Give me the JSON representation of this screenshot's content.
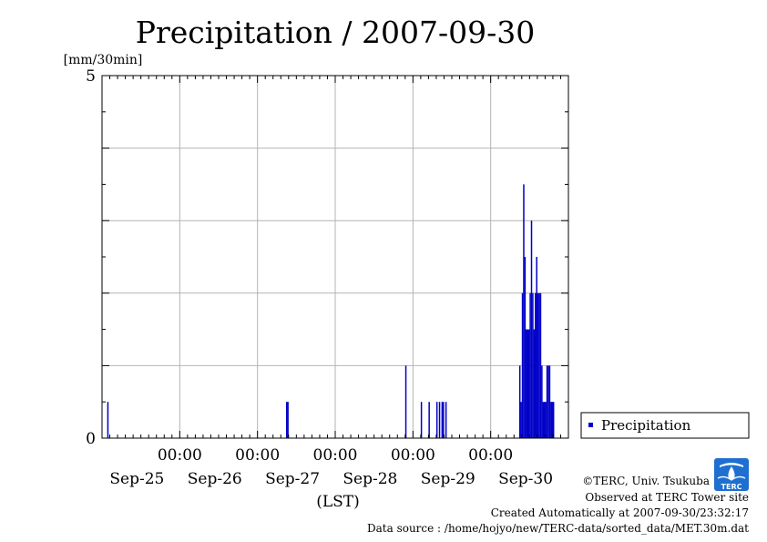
{
  "chart_data": {
    "type": "bar",
    "title": "Precipitation / 2007-09-30",
    "ylabel": "[mm/30min]",
    "xlabel": "(LST)",
    "ylim": [
      0,
      5
    ],
    "yticks": [
      {
        "value": 0,
        "label": "0"
      },
      {
        "value": 5,
        "label": "5"
      }
    ],
    "xlim": [
      -12,
      168
    ],
    "xticks": [
      {
        "hour": 18,
        "time": "00:00",
        "date": "Sep-25"
      },
      {
        "hour": 48,
        "time": "00:00",
        "date": "Sep-26"
      },
      {
        "hour": 78,
        "time": "00:00",
        "date": "Sep-27"
      },
      {
        "hour": 108,
        "time": "00:00",
        "date": "Sep-28"
      },
      {
        "hour": 138,
        "time": "00:00",
        "date": "Sep-29"
      },
      {
        "hour": null,
        "time": "",
        "date": "Sep-30"
      }
    ],
    "grid": true,
    "legend": {
      "position": "right",
      "entries": [
        "Precipitation"
      ]
    },
    "series": [
      {
        "name": "Precipitation",
        "color": "#0000c8",
        "points": [
          [
            -10,
            0.5
          ],
          [
            59,
            0.5
          ],
          [
            59.5,
            0.5
          ],
          [
            105,
            1.0
          ],
          [
            111,
            0.5
          ],
          [
            114,
            0.5
          ],
          [
            117,
            0.5
          ],
          [
            118,
            0.5
          ],
          [
            119,
            0.5
          ],
          [
            119.5,
            0.5
          ],
          [
            120.5,
            0.5
          ],
          [
            149,
            1.0
          ],
          [
            149.5,
            0.5
          ],
          [
            150,
            2.0
          ],
          [
            150.5,
            3.5
          ],
          [
            151,
            2.5
          ],
          [
            151.5,
            1.5
          ],
          [
            152,
            1.5
          ],
          [
            152.5,
            1.5
          ],
          [
            153,
            2.0
          ],
          [
            153.5,
            3.0
          ],
          [
            154,
            2.0
          ],
          [
            154.5,
            1.5
          ],
          [
            155,
            2.0
          ],
          [
            155.5,
            2.5
          ],
          [
            156,
            2.0
          ],
          [
            156.5,
            2.0
          ],
          [
            157,
            2.0
          ],
          [
            157.5,
            1.0
          ],
          [
            158,
            0.5
          ],
          [
            158.5,
            0.5
          ],
          [
            159,
            0.5
          ],
          [
            159.5,
            1.0
          ],
          [
            160,
            1.0
          ],
          [
            160.5,
            1.0
          ],
          [
            161,
            0.5
          ],
          [
            161.5,
            0.5
          ],
          [
            162,
            0.5
          ]
        ]
      }
    ]
  },
  "footer": {
    "copyright": "©TERC, Univ. Tsukuba",
    "observed": "Observed at TERC Tower site",
    "created": "Created Automatically at 2007-09-30/23:32:17",
    "source": "Data source : /home/hojyo/new/TERC-data/sorted_data/MET.30m.dat"
  },
  "logo": {
    "text": "TERC",
    "color": "#1e6fd0"
  }
}
